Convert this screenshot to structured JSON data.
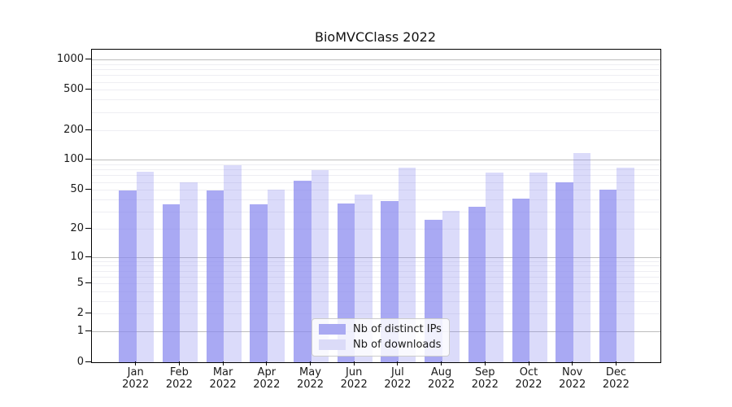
{
  "chart_data": {
    "type": "bar",
    "title": "BioMVCClass 2022",
    "categories": [
      "Jan 2022",
      "Feb 2022",
      "Mar 2022",
      "Apr 2022",
      "May 2022",
      "Jun 2022",
      "Jul 2022",
      "Aug 2022",
      "Sep 2022",
      "Oct 2022",
      "Nov 2022",
      "Dec 2022"
    ],
    "x_ticks": [
      {
        "month": "Jan",
        "year": "2022"
      },
      {
        "month": "Feb",
        "year": "2022"
      },
      {
        "month": "Mar",
        "year": "2022"
      },
      {
        "month": "Apr",
        "year": "2022"
      },
      {
        "month": "May",
        "year": "2022"
      },
      {
        "month": "Jun",
        "year": "2022"
      },
      {
        "month": "Jul",
        "year": "2022"
      },
      {
        "month": "Aug",
        "year": "2022"
      },
      {
        "month": "Sep",
        "year": "2022"
      },
      {
        "month": "Oct",
        "year": "2022"
      },
      {
        "month": "Nov",
        "year": "2022"
      },
      {
        "month": "Dec",
        "year": "2022"
      }
    ],
    "series": [
      {
        "name": "Nb of distinct IPs",
        "color": "rgba(136,136,238,0.72)",
        "legend_color": "#a9a9f2",
        "values": [
          50,
          36,
          50,
          36,
          62,
          37,
          39,
          25,
          34,
          41,
          60,
          51
        ]
      },
      {
        "name": "Nb of downloads",
        "color": "rgba(136,136,238,0.30)",
        "legend_color": "#dbdbf8",
        "values": [
          77,
          60,
          90,
          51,
          80,
          45,
          85,
          31,
          75,
          76,
          119,
          85
        ]
      }
    ],
    "y_axis": {
      "scale": "log1p",
      "ticks": [
        1000,
        500,
        200,
        100,
        50,
        20,
        10,
        5,
        2,
        1,
        0
      ],
      "major_gridlines": [
        1,
        10,
        100,
        1000
      ],
      "ylim": [
        0,
        1270
      ]
    },
    "grid": "on",
    "legend_position": "lower center"
  }
}
